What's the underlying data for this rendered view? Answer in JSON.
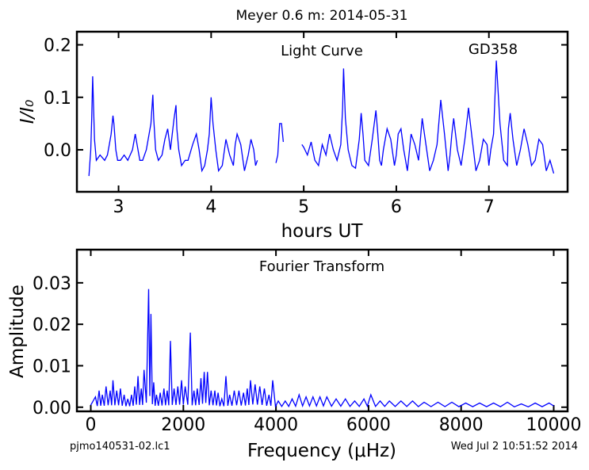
{
  "title": "Meyer 0.6 m:  2014-05-31",
  "footer": {
    "filename": "pjmo140531-02.lc1",
    "timestamp": "Wed Jul  2 10:51:52 2014"
  },
  "colors": {
    "line": "#0000ff",
    "axes": "#000000"
  },
  "chart_data": [
    {
      "type": "line",
      "title": "Light Curve",
      "annotation": "GD358",
      "xlabel": "hours UT",
      "ylabel": "I/I₀",
      "xlim": [
        2.55,
        7.85
      ],
      "ylim": [
        -0.08,
        0.225
      ],
      "xticks": [
        "3",
        "4",
        "5",
        "6",
        "7"
      ],
      "yticks": [
        "0.2",
        "0.1",
        "0.0"
      ],
      "grid": false,
      "series": [
        {
          "segments": [
            {
              "x": [
                2.68,
                2.7,
                2.71,
                2.72,
                2.74,
                2.76,
                2.8,
                2.85,
                2.88,
                2.9,
                2.92,
                2.94,
                2.95,
                2.97,
                2.99,
                3.02,
                3.06,
                3.1,
                3.15,
                3.18,
                3.2,
                3.23,
                3.26,
                3.3,
                3.35,
                3.37,
                3.38,
                3.4,
                3.43,
                3.47,
                3.5,
                3.53,
                3.56,
                3.58,
                3.6,
                3.62,
                3.63,
                3.65,
                3.68,
                3.72,
                3.75,
                3.8,
                3.84,
                3.87,
                3.9,
                3.93,
                3.96,
                3.98,
                4.0,
                4.02,
                4.05,
                4.08,
                4.12,
                4.16,
                4.2,
                4.24,
                4.26,
                4.28,
                4.32,
                4.36,
                4.4,
                4.43,
                4.46,
                4.48,
                4.5
              ],
              "y": [
                -0.05,
                0.0,
                0.06,
                0.14,
                0.02,
                -0.02,
                -0.01,
                -0.02,
                -0.01,
                0.01,
                0.03,
                0.065,
                0.05,
                0.0,
                -0.02,
                -0.02,
                -0.01,
                -0.02,
                0.0,
                0.03,
                0.01,
                -0.02,
                -0.02,
                0.0,
                0.05,
                0.105,
                0.06,
                0.0,
                -0.02,
                -0.01,
                0.02,
                0.04,
                0.0,
                0.03,
                0.06,
                0.085,
                0.04,
                0.0,
                -0.03,
                -0.02,
                -0.02,
                0.01,
                0.03,
                0.0,
                -0.04,
                -0.03,
                0.0,
                0.03,
                0.1,
                0.05,
                0.0,
                -0.04,
                -0.03,
                0.02,
                -0.01,
                -0.03,
                0.01,
                0.03,
                0.01,
                -0.04,
                -0.01,
                0.02,
                0.0,
                -0.03,
                -0.02
              ]
            },
            {
              "x": [
                4.7,
                4.72,
                4.74,
                4.76,
                4.78
              ],
              "y": [
                -0.025,
                -0.01,
                0.05,
                0.05,
                0.015
              ]
            },
            {
              "x": [
                4.98,
                5.0,
                5.04,
                5.08,
                5.12,
                5.16,
                5.2,
                5.24,
                5.28,
                5.32,
                5.36,
                5.4,
                5.42,
                5.43,
                5.45,
                5.48,
                5.52,
                5.56,
                5.6,
                5.62,
                5.64,
                5.66,
                5.7,
                5.74,
                5.78,
                5.8,
                5.82,
                5.84,
                5.86,
                5.9,
                5.94,
                5.98,
                6.0,
                6.02,
                6.05,
                6.08,
                6.12,
                6.16,
                6.2,
                6.24,
                6.28,
                6.32,
                6.36,
                6.4,
                6.44,
                6.48,
                6.52,
                6.56,
                6.58,
                6.6,
                6.62,
                6.66,
                6.7,
                6.74,
                6.78,
                6.82,
                6.86,
                6.9,
                6.94,
                6.98,
                7.0,
                7.02,
                7.05,
                7.08,
                7.12,
                7.16,
                7.2,
                7.21,
                7.23,
                7.26,
                7.3,
                7.34,
                7.38,
                7.42,
                7.46,
                7.5,
                7.54,
                7.58,
                7.62,
                7.66,
                7.7
              ],
              "y": [
                0.01,
                0.005,
                -0.01,
                0.015,
                -0.02,
                -0.03,
                0.01,
                -0.01,
                0.03,
                0.0,
                -0.02,
                0.01,
                0.08,
                0.155,
                0.06,
                0.0,
                -0.03,
                -0.035,
                0.02,
                0.07,
                0.03,
                -0.02,
                -0.03,
                0.02,
                0.075,
                0.03,
                -0.02,
                -0.03,
                0.0,
                0.04,
                0.02,
                -0.03,
                -0.01,
                0.03,
                0.04,
                0.0,
                -0.04,
                0.03,
                0.01,
                -0.02,
                0.06,
                0.01,
                -0.04,
                -0.02,
                0.01,
                0.095,
                0.03,
                -0.04,
                -0.01,
                0.03,
                0.06,
                0.0,
                -0.03,
                0.02,
                0.08,
                0.02,
                -0.04,
                -0.02,
                0.02,
                0.01,
                -0.03,
                0.0,
                0.03,
                0.17,
                0.05,
                -0.02,
                -0.03,
                0.04,
                0.07,
                0.02,
                -0.03,
                0.0,
                0.04,
                0.01,
                -0.03,
                -0.02,
                0.02,
                0.01,
                -0.04,
                -0.02,
                -0.045
              ]
            }
          ]
        }
      ]
    },
    {
      "type": "line",
      "title": "Fourier Transform",
      "xlabel": "Frequency (μHz)",
      "ylabel": "Amplitude",
      "xlim": [
        -300,
        10300
      ],
      "ylim": [
        -0.001,
        0.038
      ],
      "xticks": [
        "0",
        "2000",
        "4000",
        "6000",
        "8000",
        "10000"
      ],
      "yticks": [
        "0.03",
        "0.02",
        "0.01",
        "0.00"
      ],
      "grid": false,
      "peaks": [
        {
          "x": 100,
          "y": 0.0025
        },
        {
          "x": 180,
          "y": 0.004
        },
        {
          "x": 250,
          "y": 0.003
        },
        {
          "x": 330,
          "y": 0.005
        },
        {
          "x": 420,
          "y": 0.004
        },
        {
          "x": 480,
          "y": 0.0065
        },
        {
          "x": 560,
          "y": 0.004
        },
        {
          "x": 640,
          "y": 0.0045
        },
        {
          "x": 720,
          "y": 0.003
        },
        {
          "x": 800,
          "y": 0.002
        },
        {
          "x": 880,
          "y": 0.003
        },
        {
          "x": 950,
          "y": 0.005
        },
        {
          "x": 1020,
          "y": 0.0075
        },
        {
          "x": 1090,
          "y": 0.0045
        },
        {
          "x": 1150,
          "y": 0.009
        },
        {
          "x": 1250,
          "y": 0.0285
        },
        {
          "x": 1300,
          "y": 0.0225
        },
        {
          "x": 1360,
          "y": 0.006
        },
        {
          "x": 1420,
          "y": 0.003
        },
        {
          "x": 1500,
          "y": 0.0035
        },
        {
          "x": 1580,
          "y": 0.0045
        },
        {
          "x": 1650,
          "y": 0.004
        },
        {
          "x": 1720,
          "y": 0.016
        },
        {
          "x": 1800,
          "y": 0.0045
        },
        {
          "x": 1880,
          "y": 0.005
        },
        {
          "x": 1960,
          "y": 0.0065
        },
        {
          "x": 2040,
          "y": 0.005
        },
        {
          "x": 2150,
          "y": 0.018
        },
        {
          "x": 2230,
          "y": 0.004
        },
        {
          "x": 2300,
          "y": 0.0045
        },
        {
          "x": 2380,
          "y": 0.007
        },
        {
          "x": 2450,
          "y": 0.0085
        },
        {
          "x": 2520,
          "y": 0.0085
        },
        {
          "x": 2600,
          "y": 0.004
        },
        {
          "x": 2680,
          "y": 0.004
        },
        {
          "x": 2750,
          "y": 0.0035
        },
        {
          "x": 2830,
          "y": 0.002
        },
        {
          "x": 2920,
          "y": 0.0075
        },
        {
          "x": 3000,
          "y": 0.003
        },
        {
          "x": 3100,
          "y": 0.004
        },
        {
          "x": 3200,
          "y": 0.004
        },
        {
          "x": 3300,
          "y": 0.0035
        },
        {
          "x": 3380,
          "y": 0.0045
        },
        {
          "x": 3450,
          "y": 0.0065
        },
        {
          "x": 3550,
          "y": 0.0055
        },
        {
          "x": 3650,
          "y": 0.005
        },
        {
          "x": 3750,
          "y": 0.0045
        },
        {
          "x": 3850,
          "y": 0.003
        },
        {
          "x": 3930,
          "y": 0.0065
        },
        {
          "x": 4050,
          "y": 0.0015
        },
        {
          "x": 4200,
          "y": 0.0015
        },
        {
          "x": 4350,
          "y": 0.002
        },
        {
          "x": 4500,
          "y": 0.003
        },
        {
          "x": 4650,
          "y": 0.0025
        },
        {
          "x": 4800,
          "y": 0.0025
        },
        {
          "x": 4950,
          "y": 0.0025
        },
        {
          "x": 5100,
          "y": 0.0025
        },
        {
          "x": 5300,
          "y": 0.002
        },
        {
          "x": 5500,
          "y": 0.002
        },
        {
          "x": 5700,
          "y": 0.0015
        },
        {
          "x": 5900,
          "y": 0.002
        },
        {
          "x": 6050,
          "y": 0.003
        },
        {
          "x": 6250,
          "y": 0.0015
        },
        {
          "x": 6450,
          "y": 0.0015
        },
        {
          "x": 6700,
          "y": 0.0015
        },
        {
          "x": 6950,
          "y": 0.0015
        },
        {
          "x": 7200,
          "y": 0.0012
        },
        {
          "x": 7500,
          "y": 0.0012
        },
        {
          "x": 7800,
          "y": 0.0012
        },
        {
          "x": 8100,
          "y": 0.001
        },
        {
          "x": 8400,
          "y": 0.001
        },
        {
          "x": 8700,
          "y": 0.001
        },
        {
          "x": 9000,
          "y": 0.0012
        },
        {
          "x": 9300,
          "y": 0.0008
        },
        {
          "x": 9600,
          "y": 0.001
        },
        {
          "x": 9900,
          "y": 0.001
        }
      ]
    }
  ]
}
